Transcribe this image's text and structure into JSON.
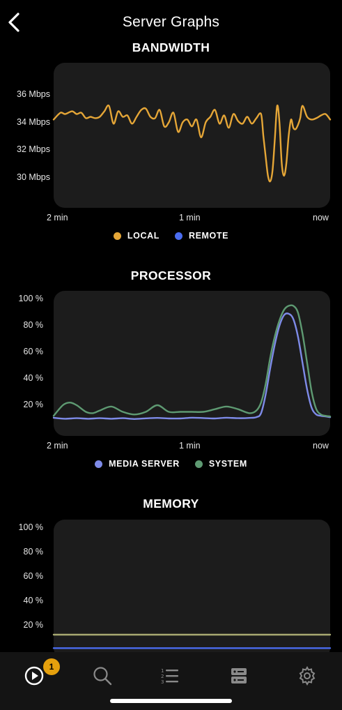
{
  "header": {
    "title": "Server Graphs",
    "back_icon": "chevron-left-icon"
  },
  "colors": {
    "local": "#E5A637",
    "remote": "#4A6CF0",
    "media_server": "#7E8BE8",
    "system": "#5E9A72",
    "panel": "#1C1C1C",
    "badge": "#E5A00D"
  },
  "sections": {
    "bandwidth": {
      "title": "BANDWIDTH",
      "legend": [
        {
          "label": "LOCAL",
          "color": "#E5A637"
        },
        {
          "label": "REMOTE",
          "color": "#4A6CF0"
        }
      ]
    },
    "processor": {
      "title": "PROCESSOR",
      "legend": [
        {
          "label": "MEDIA SERVER",
          "color": "#7E8BE8"
        },
        {
          "label": "SYSTEM",
          "color": "#5E9A72"
        }
      ]
    },
    "memory": {
      "title": "MEMORY"
    }
  },
  "chart_data": [
    {
      "type": "line",
      "title": "BANDWIDTH",
      "yticks": [
        "36 Mbps",
        "34 Mbps",
        "32 Mbps",
        "30 Mbps"
      ],
      "xticks": [
        "2 min",
        "1 min",
        "now"
      ],
      "ylim": [
        28,
        38
      ],
      "xlim": [
        0,
        120
      ],
      "series": [
        {
          "name": "LOCAL",
          "color": "#E5A637",
          "x": [
            0,
            3,
            5,
            8,
            10,
            12,
            14,
            16,
            18,
            20,
            22,
            24,
            26,
            28,
            30,
            32,
            34,
            36,
            38,
            40,
            42,
            44,
            46,
            48,
            50,
            52,
            54,
            56,
            58,
            60,
            62,
            64,
            66,
            68,
            70,
            72,
            74,
            76,
            78,
            80,
            82,
            84,
            86,
            88,
            90,
            91,
            92,
            93,
            94,
            95,
            96,
            97,
            98,
            99,
            100,
            101,
            102,
            103,
            104,
            105,
            106,
            107,
            108,
            110,
            112,
            114,
            116,
            118,
            120
          ],
          "y": [
            34.2,
            34.7,
            34.6,
            34.8,
            34.6,
            34.7,
            34.3,
            34.4,
            34.3,
            34.4,
            34.8,
            35.2,
            33.9,
            34.8,
            34.4,
            34.5,
            33.9,
            34.4,
            34.9,
            35.0,
            34.4,
            34.3,
            34.9,
            33.7,
            34.0,
            34.7,
            33.3,
            34.0,
            34.2,
            33.7,
            34.2,
            32.9,
            34.0,
            34.4,
            34.9,
            33.9,
            34.5,
            33.6,
            34.6,
            34.1,
            33.9,
            34.4,
            33.9,
            34.3,
            34.6,
            33.0,
            31.5,
            30.1,
            29.7,
            30.5,
            32.8,
            35.2,
            34.0,
            31.0,
            30.1,
            31.0,
            33.0,
            34.2,
            33.6,
            33.5,
            33.8,
            34.3,
            35.2,
            34.4,
            34.2,
            34.3,
            34.5,
            34.6,
            34.2
          ]
        },
        {
          "name": "REMOTE",
          "color": "#4A6CF0",
          "x": [],
          "y": []
        }
      ]
    },
    {
      "type": "line",
      "title": "PROCESSOR",
      "yticks": [
        "100 %",
        "80 %",
        "60 %",
        "40 %",
        "20 %"
      ],
      "xticks": [
        "2 min",
        "1 min",
        "now"
      ],
      "ylim": [
        0,
        100
      ],
      "xlim": [
        0,
        120
      ],
      "series": [
        {
          "name": "MEDIA SERVER",
          "color": "#7E8BE8",
          "x": [
            0,
            5,
            10,
            15,
            20,
            25,
            30,
            35,
            40,
            45,
            50,
            55,
            60,
            65,
            70,
            75,
            80,
            85,
            88,
            90,
            92,
            94,
            96,
            98,
            100,
            102,
            104,
            106,
            108,
            110,
            112,
            114,
            116,
            118,
            120
          ],
          "y": [
            10.5,
            9.8,
            10.2,
            9.8,
            10.2,
            9.8,
            10.2,
            9.6,
            10.1,
            10.4,
            10.0,
            10.0,
            10.6,
            10.3,
            10.0,
            10.6,
            10.2,
            10.4,
            11.0,
            14,
            28,
            48,
            66,
            80,
            88,
            89,
            85,
            72,
            52,
            32,
            18,
            13,
            12,
            11.5,
            11
          ]
        },
        {
          "name": "SYSTEM",
          "color": "#5E9A72",
          "x": [
            0,
            4,
            7,
            10,
            14,
            17,
            20,
            25,
            30,
            35,
            40,
            45,
            50,
            55,
            60,
            65,
            70,
            75,
            80,
            85,
            88,
            90,
            92,
            94,
            96,
            98,
            100,
            102,
            104,
            106,
            108,
            110,
            112,
            114,
            116,
            118,
            120
          ],
          "y": [
            12,
            20,
            22,
            20,
            15,
            14,
            16,
            19,
            15,
            13,
            15,
            20,
            15,
            15,
            15,
            15,
            17,
            19,
            17,
            14,
            16,
            22,
            36,
            56,
            72,
            84,
            92,
            95,
            95,
            90,
            74,
            52,
            30,
            17,
            13,
            12,
            11.5
          ]
        }
      ]
    },
    {
      "type": "line",
      "title": "MEMORY",
      "yticks": [
        "100 %",
        "80 %",
        "60 %",
        "40 %",
        "20 %"
      ],
      "ylim": [
        0,
        100
      ],
      "xlim": [
        0,
        120
      ],
      "series": [
        {
          "name": "MEDIA SERVER",
          "color": "#4A6CF0",
          "x": [
            0,
            120
          ],
          "y": [
            1,
            1
          ]
        },
        {
          "name": "SYSTEM",
          "color": "#A9AA72",
          "x": [
            0,
            120
          ],
          "y": [
            12,
            12
          ]
        }
      ]
    }
  ],
  "tabbar": {
    "items": [
      {
        "name": "now-playing",
        "icon": "play-circle-icon"
      },
      {
        "name": "search",
        "icon": "search-icon"
      },
      {
        "name": "playlists",
        "icon": "numbered-list-icon"
      },
      {
        "name": "servers",
        "icon": "server-icon"
      },
      {
        "name": "settings",
        "icon": "gear-icon"
      }
    ],
    "badge": "1"
  }
}
